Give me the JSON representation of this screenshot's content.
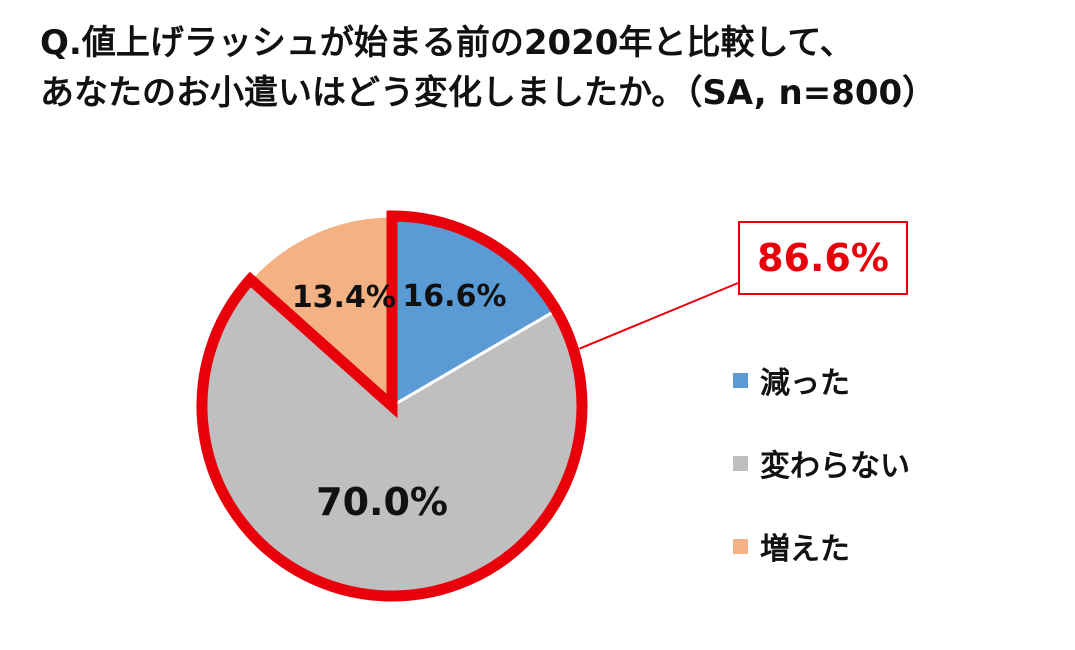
{
  "title": {
    "line1": "Q.値上げラッシュが始まる前の2020年と比較して、",
    "line2": "あなたのお小遣いはどう変化しましたか。（SA, n=800）"
  },
  "chart_data": {
    "type": "pie",
    "title": "Q.値上げラッシュが始まる前の2020年と比較して、あなたのお小遣いはどう変化しましたか。（SA, n=800）",
    "slices": [
      {
        "label": "減った",
        "value": 16.6,
        "display": "16.6%",
        "color": "#5b9bd5"
      },
      {
        "label": "変わらない",
        "value": 70.0,
        "display": "70.0%",
        "color": "#bfbfbf"
      },
      {
        "label": "増えた",
        "value": 13.4,
        "display": "13.4%",
        "color": "#f4b183"
      }
    ],
    "highlight": {
      "slices": [
        "減った",
        "変わらない"
      ],
      "value": "86.6%",
      "color": "#e8000b"
    },
    "legend_position": "right"
  }
}
